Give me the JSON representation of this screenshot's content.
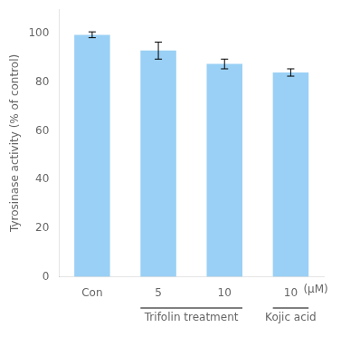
{
  "chart_data": {
    "type": "bar",
    "categories": [
      "Con",
      "5",
      "10",
      "10"
    ],
    "values": [
      99.5,
      93.0,
      87.5,
      84.0
    ],
    "errors": [
      1.2,
      3.5,
      2.0,
      1.5
    ],
    "ylabel": "Tyrosinase activity (% of control)",
    "ylim": [
      0,
      110
    ],
    "yticks": [
      0,
      20,
      40,
      60,
      80,
      100
    ],
    "grid": false,
    "annotations": [
      "(μM)",
      "Trifolin treatment",
      "Kojic acid"
    ]
  }
}
